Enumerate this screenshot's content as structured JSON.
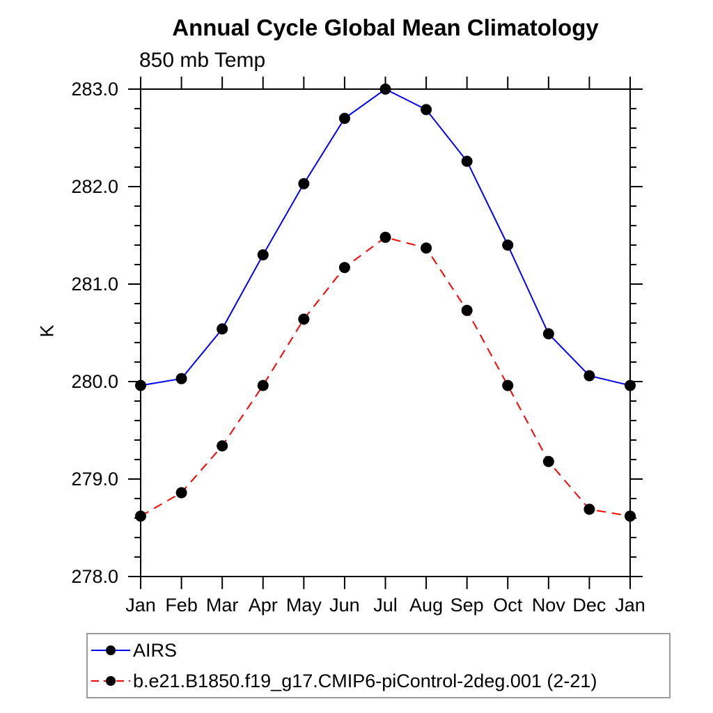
{
  "title": "Annual Cycle Global Mean Climatology",
  "subtitle": "850 mb Temp",
  "chart_data": {
    "type": "line",
    "title": "Annual Cycle Global Mean Climatology",
    "subtitle": "850 mb Temp",
    "xlabel": "",
    "ylabel": "K",
    "x_categories": [
      "Jan",
      "Feb",
      "Mar",
      "Apr",
      "May",
      "Jun",
      "Jul",
      "Aug",
      "Sep",
      "Oct",
      "Nov",
      "Dec",
      "Jan"
    ],
    "ylim": [
      278.0,
      283.0
    ],
    "y_major_ticks": [
      278.0,
      279.0,
      280.0,
      281.0,
      282.0,
      283.0
    ],
    "y_tick_labels": [
      "278.0",
      "279.0",
      "280.0",
      "281.0",
      "282.0",
      "283.0"
    ],
    "y_minor_tick_interval": 0.2,
    "grid": false,
    "legend_position": "bottom-left",
    "series": [
      {
        "name": "AIRS",
        "color": "#0000ff",
        "line_style": "solid",
        "marker": "filled-circle",
        "marker_color": "#000000",
        "values": [
          279.96,
          280.03,
          280.54,
          281.3,
          282.03,
          282.7,
          283.0,
          282.79,
          282.26,
          281.4,
          280.49,
          280.06,
          279.96
        ]
      },
      {
        "name": "b.e21.B1850.f19_g17.CMIP6-piControl-2deg.001 (2-21)",
        "color": "#ff0000",
        "line_style": "dashed",
        "marker": "filled-circle",
        "marker_color": "#000000",
        "values": [
          278.62,
          278.86,
          279.34,
          279.96,
          280.64,
          281.17,
          281.48,
          281.37,
          280.73,
          279.96,
          279.18,
          278.69,
          278.62
        ]
      }
    ]
  },
  "colors": {
    "axis": "#000000",
    "background": "#ffffff",
    "legend_border": "#9a9a9a",
    "text": "#000000"
  }
}
